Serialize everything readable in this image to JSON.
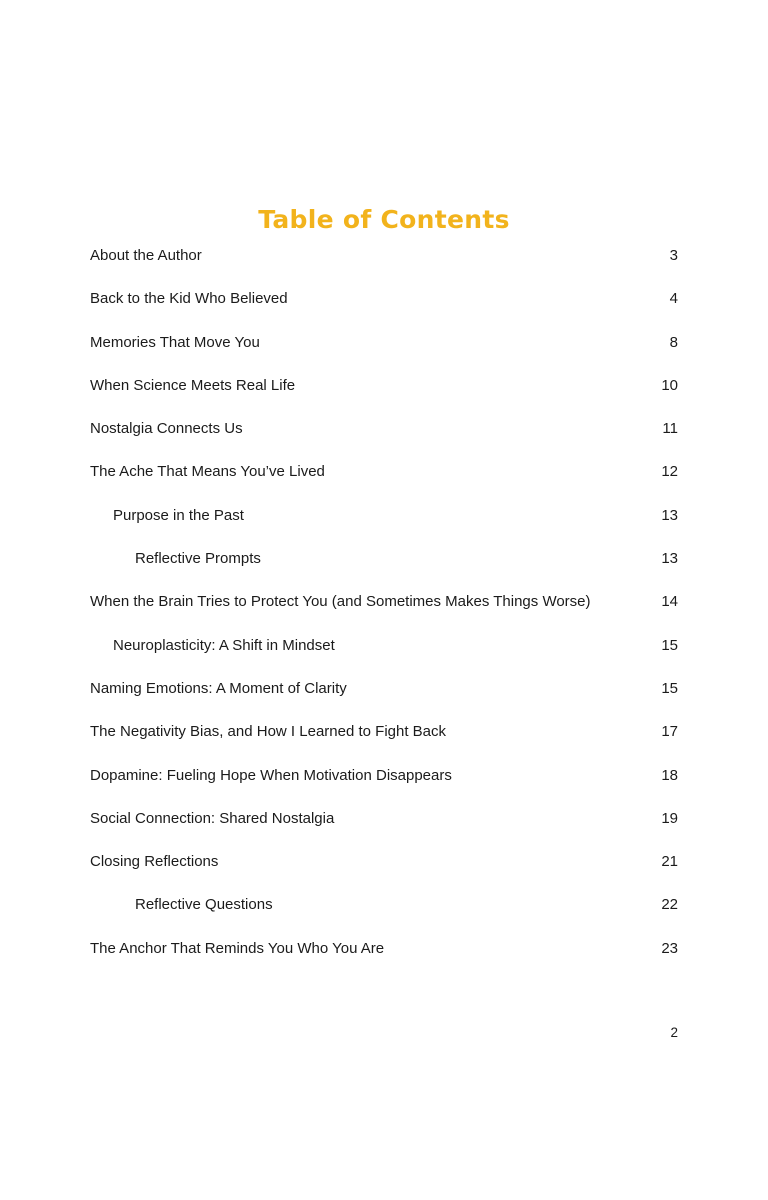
{
  "page": {
    "title": "Table of Contents",
    "footer_page_number": "2"
  },
  "colors": {
    "title_gold": "#F2B31C",
    "body_text": "#1b1b1b",
    "background": "#ffffff"
  },
  "toc": {
    "entries": [
      {
        "label": "About the Author",
        "page": "3",
        "level": 0
      },
      {
        "label": "Back to the Kid Who Believed",
        "page": "4",
        "level": 0
      },
      {
        "label": "Memories That Move You",
        "page": "8",
        "level": 0
      },
      {
        "label": "When Science Meets Real Life",
        "page": "10",
        "level": 0
      },
      {
        "label": "Nostalgia Connects Us",
        "page": "11",
        "level": 0
      },
      {
        "label": "The Ache That Means You’ve Lived",
        "page": "12",
        "level": 0
      },
      {
        "label": "Purpose in the Past",
        "page": "13",
        "level": 1
      },
      {
        "label": "Reflective Prompts",
        "page": "13",
        "level": 2
      },
      {
        "label": "When the Brain Tries to Protect You (and Sometimes Makes Things Worse)",
        "page": "14",
        "level": 0
      },
      {
        "label": "Neuroplasticity: A Shift in Mindset",
        "page": "15",
        "level": 1
      },
      {
        "label": "Naming Emotions: A Moment of Clarity",
        "page": "15",
        "level": 0
      },
      {
        "label": "The Negativity Bias, and How I Learned to Fight Back",
        "page": "17",
        "level": 0
      },
      {
        "label": "Dopamine: Fueling Hope When Motivation Disappears",
        "page": "18",
        "level": 0
      },
      {
        "label": "Social Connection: Shared Nostalgia",
        "page": "19",
        "level": 0
      },
      {
        "label": "Closing Reflections",
        "page": "21",
        "level": 0
      },
      {
        "label": "Reflective Questions",
        "page": "22",
        "level": 2
      },
      {
        "label": "The Anchor That Reminds You Who You Are",
        "page": "23",
        "level": 0
      }
    ]
  }
}
